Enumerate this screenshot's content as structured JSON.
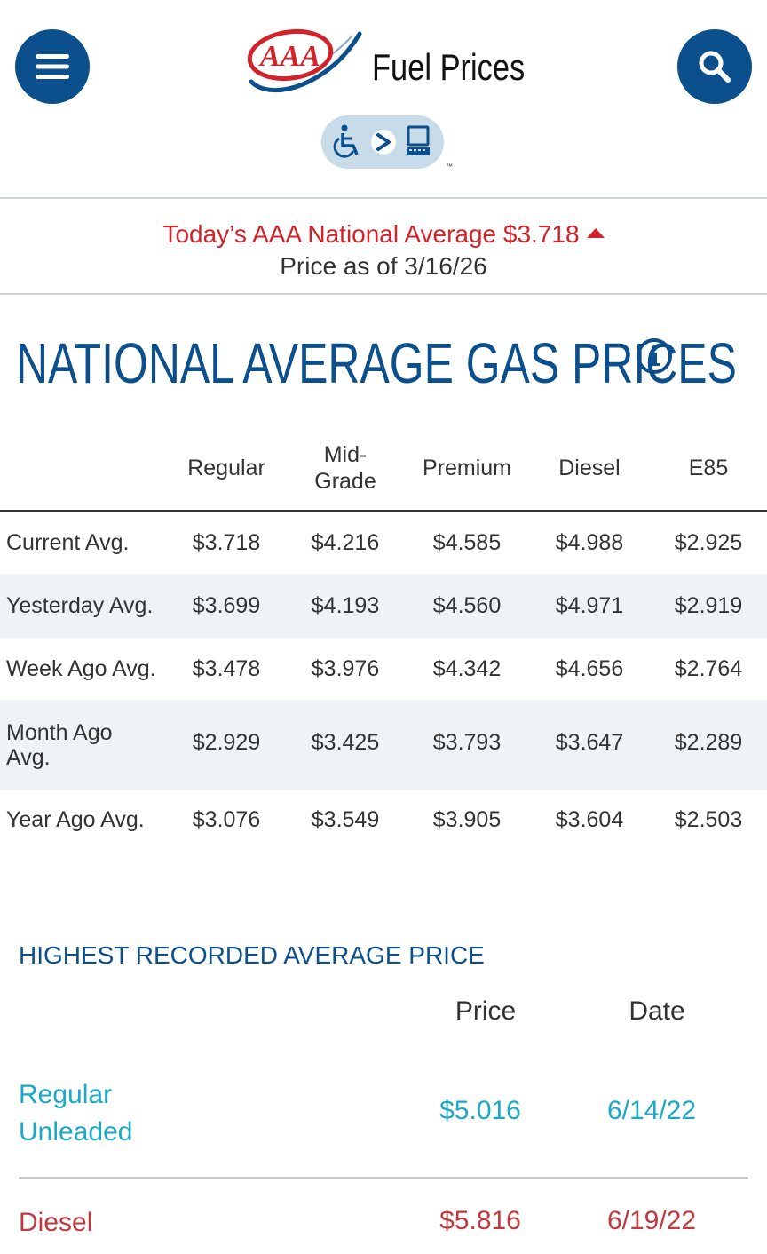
{
  "header": {
    "logo_text": "AAA",
    "title": "Fuel Prices",
    "menu_icon": "hamburger-menu-icon",
    "search_icon": "search-icon",
    "access_badge_icons": [
      "wheelchair-icon",
      "chevron-right-icon",
      "computer-icon"
    ],
    "access_badge_mark": "™"
  },
  "banner": {
    "national_average": "Today’s AAA National Average $3.718",
    "trend": "up",
    "price_date": "Price as of 3/16/26"
  },
  "section": {
    "title": "NATIONAL AVERAGE GAS PRICES",
    "info_icon": "info-icon"
  },
  "price_table": {
    "columns": [
      "Regular",
      "Mid-\nGrade",
      "Premium",
      "Diesel",
      "E85"
    ],
    "rows": [
      {
        "label": "Current Avg.",
        "values": [
          "$3.718",
          "$4.216",
          "$4.585",
          "$4.988",
          "$2.925"
        ]
      },
      {
        "label": "Yesterday Avg.",
        "values": [
          "$3.699",
          "$4.193",
          "$4.560",
          "$4.971",
          "$2.919"
        ]
      },
      {
        "label": "Week Ago Avg.",
        "values": [
          "$3.478",
          "$3.976",
          "$4.342",
          "$4.656",
          "$2.764"
        ]
      },
      {
        "label": "Month Ago Avg.",
        "values": [
          "$2.929",
          "$3.425",
          "$3.793",
          "$3.647",
          "$2.289"
        ]
      },
      {
        "label": "Year Ago Avg.",
        "values": [
          "$3.076",
          "$3.549",
          "$3.905",
          "$3.604",
          "$2.503"
        ]
      }
    ]
  },
  "highest_recorded": {
    "title": "HIGHEST RECORDED AVERAGE PRICE",
    "price_header": "Price",
    "date_header": "Date",
    "rows": [
      {
        "label": "Regular Unleaded",
        "price": "$5.016",
        "date": "6/14/22"
      },
      {
        "label": "Diesel",
        "price": "$5.816",
        "date": "6/19/22"
      }
    ]
  },
  "colors": {
    "brand_blue": "#0b4f8c",
    "alert_red": "#d2232a",
    "teal": "#1ba9c5",
    "diesel_red": "#c0393f",
    "row_alt": "#eef3f7"
  }
}
